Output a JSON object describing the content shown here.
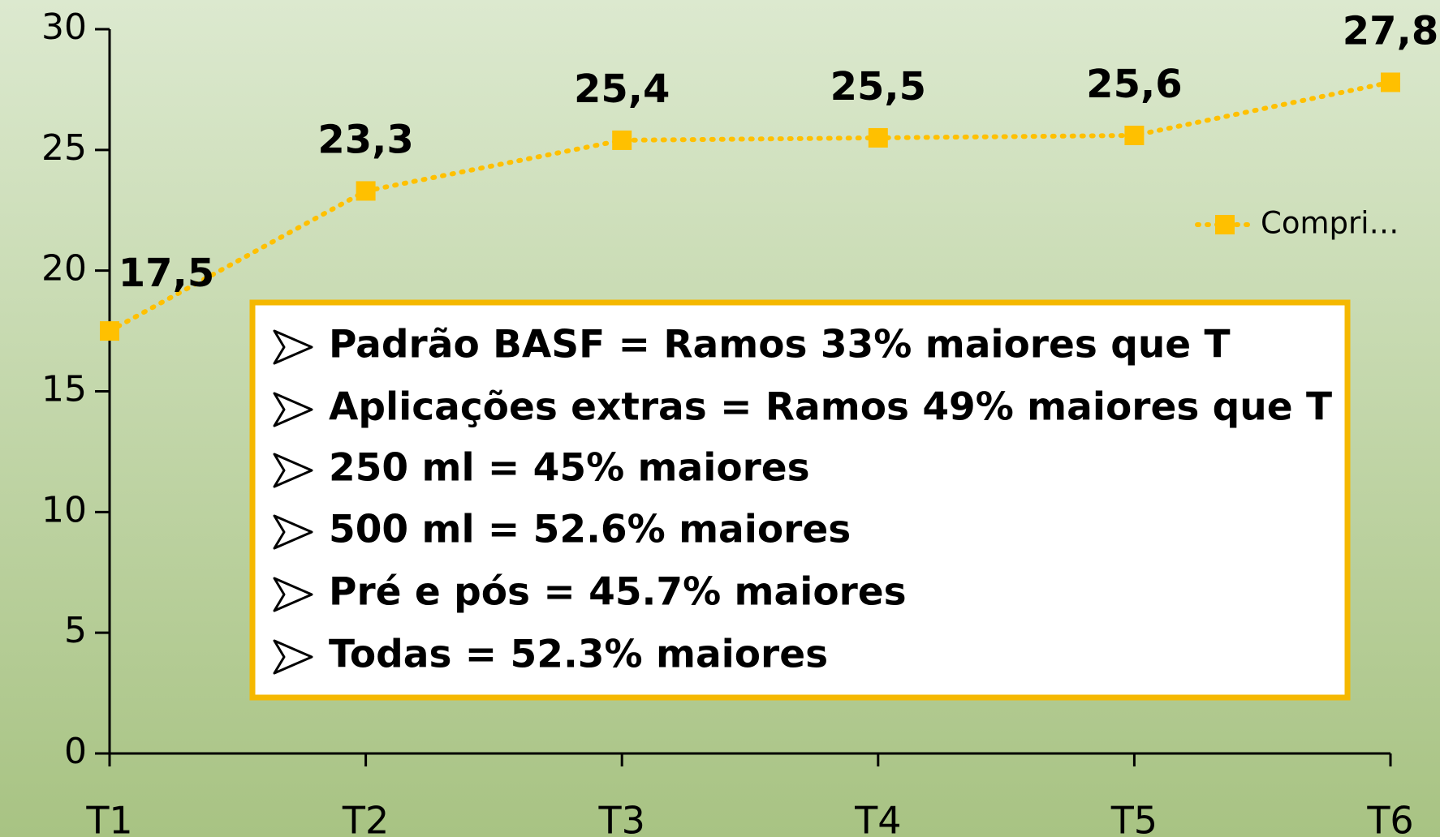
{
  "chart_data": {
    "type": "line",
    "categories": [
      "T1",
      "T2",
      "T3",
      "T4",
      "T5",
      "T6"
    ],
    "series": [
      {
        "name": "Compri…",
        "color": "#ffc000",
        "values": [
          17.5,
          23.3,
          25.4,
          25.5,
          25.6,
          27.8
        ],
        "value_labels": [
          "17,5",
          "23,3",
          "25,4",
          "25,5",
          "25,6",
          "27,8"
        ]
      }
    ],
    "ylim": [
      0,
      30
    ],
    "yticks": [
      0,
      5,
      10,
      15,
      20,
      25,
      30
    ],
    "legend": "right",
    "annotations": [
      "Padrão BASF = Ramos 33% maiores que T",
      "Aplicações extras = Ramos 49% maiores que T",
      "250 ml = 45% maiores",
      "500 ml = 52.6% maiores",
      "Pré e pós = 45.7% maiores",
      "Todas = 52.3% maiores"
    ]
  }
}
